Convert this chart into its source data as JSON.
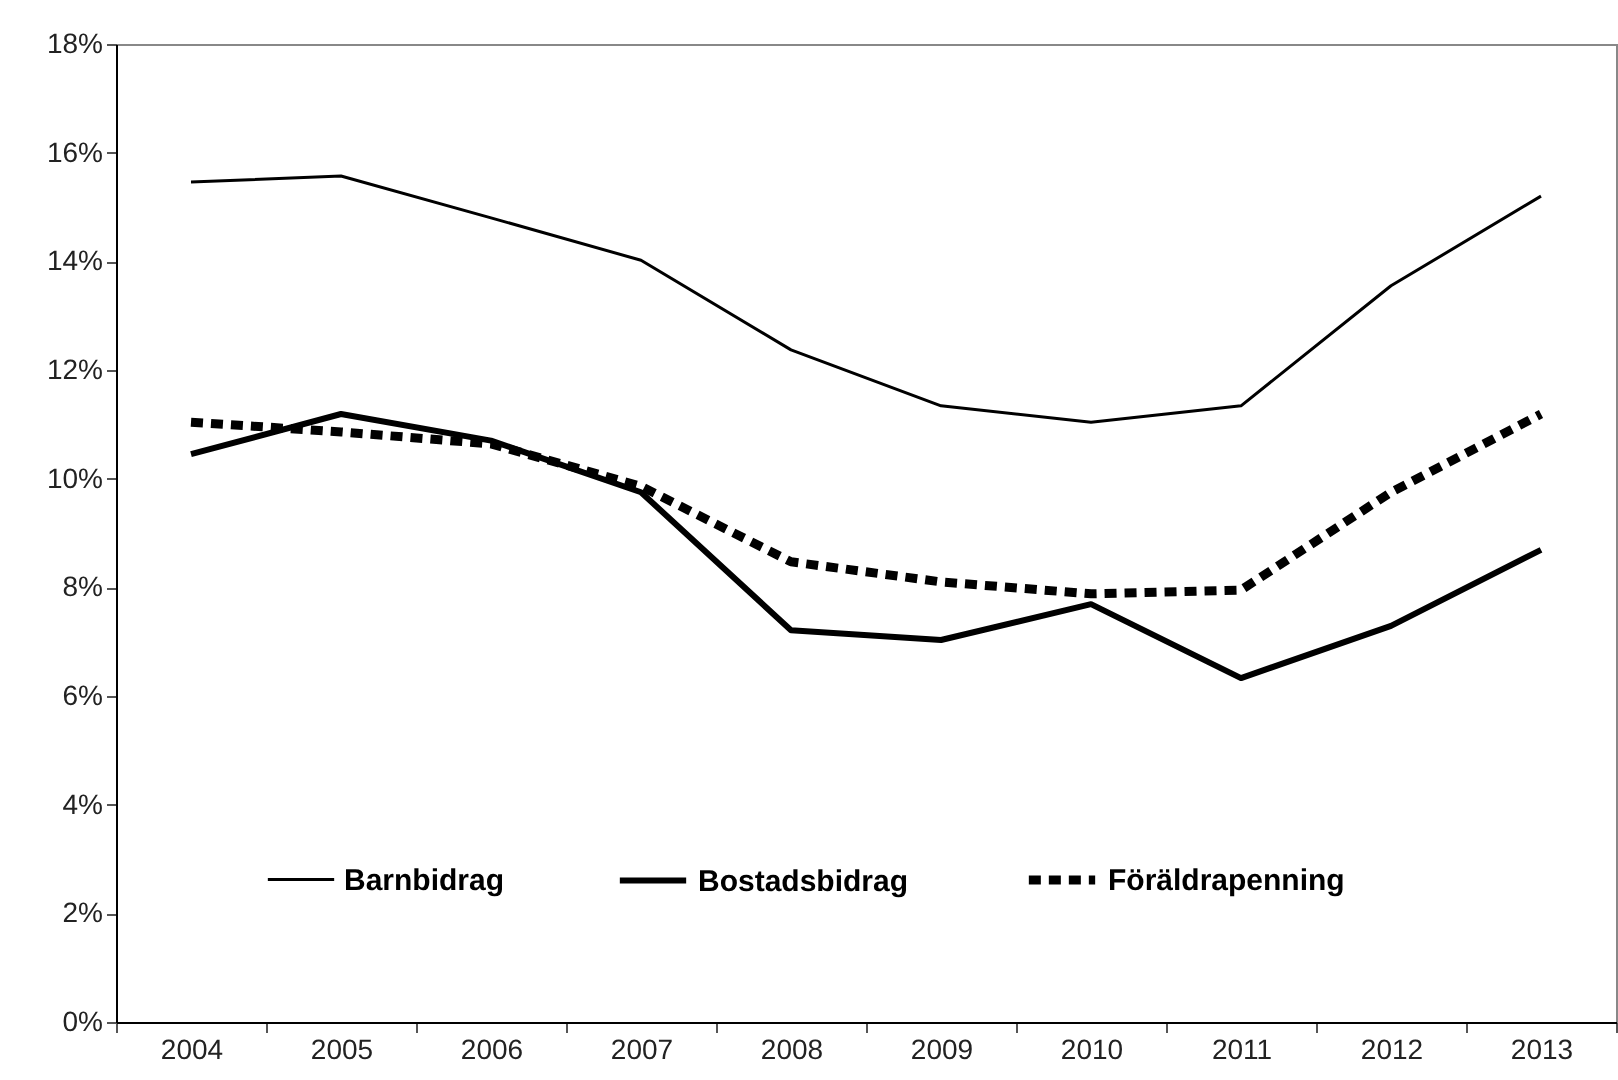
{
  "chart_data": {
    "type": "line",
    "categories": [
      "2004",
      "2005",
      "2006",
      "2007",
      "2008",
      "2009",
      "2010",
      "2011",
      "2012",
      "2013"
    ],
    "series": [
      {
        "name": "Barnbidrag",
        "color": "#000000",
        "line_style": "solid",
        "values": [
          15.46,
          15.57,
          14.8,
          14.02,
          12.37,
          11.34,
          11.04,
          11.34,
          13.55,
          15.2
        ]
      },
      {
        "name": "Bostadsbidrag",
        "color": "#000000",
        "line_style": "solid",
        "values": [
          10.45,
          11.19,
          10.7,
          9.75,
          7.21,
          7.03,
          7.69,
          6.33,
          7.29,
          8.69
        ]
      },
      {
        "name": "Föräldrapenning",
        "color": "#000000",
        "line_style": "dashed",
        "values": [
          11.04,
          10.86,
          10.64,
          9.86,
          8.47,
          8.1,
          7.88,
          7.95,
          9.75,
          11.19
        ]
      }
    ],
    "ylim": [
      0,
      18
    ],
    "yticks": [
      {
        "value": 0,
        "label": "0%"
      },
      {
        "value": 2,
        "label": "2%"
      },
      {
        "value": 4,
        "label": "4%"
      },
      {
        "value": 6,
        "label": "6%"
      },
      {
        "value": 8,
        "label": "8%"
      },
      {
        "value": 10,
        "label": "10%"
      },
      {
        "value": 12,
        "label": "12%"
      },
      {
        "value": 14,
        "label": "14%"
      },
      {
        "value": 16,
        "label": "16%"
      },
      {
        "value": 18,
        "label": "18%"
      }
    ],
    "grid": false,
    "legend": "bottom",
    "marker": "none"
  }
}
